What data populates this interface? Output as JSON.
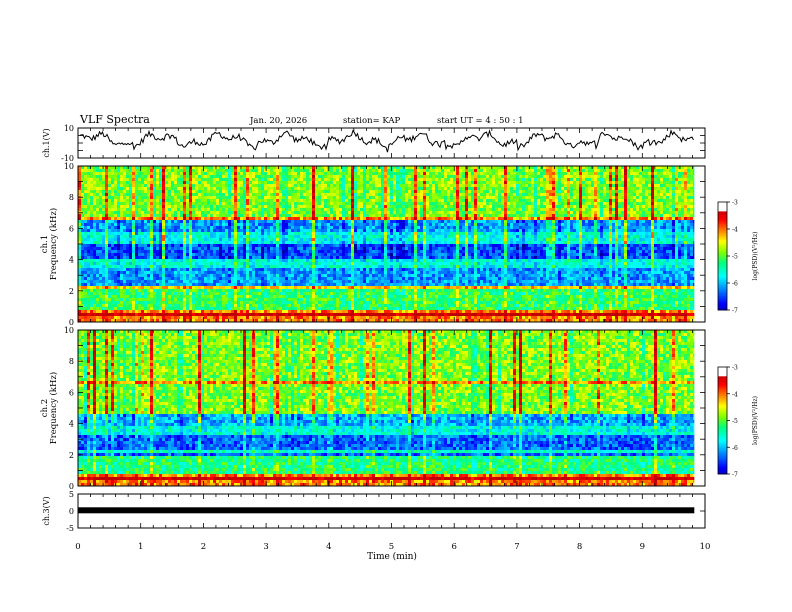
{
  "header": {
    "title": "VLF Spectra",
    "date": "Jan. 20, 2026",
    "station": "station= KAP",
    "start": "start  UT =  4 : 50 : 1"
  },
  "chart_data": [
    {
      "type": "line",
      "name": "ch1-waveform",
      "ylabel": "ch.1(V)",
      "ylim": [
        -10,
        10
      ],
      "yticks": [
        "10",
        "-10"
      ],
      "xlim": [
        0,
        10
      ],
      "x_end": 9.83,
      "description_of_signal": "noisy oscillation around +2 V"
    },
    {
      "type": "heatmap",
      "name": "ch1-spectrogram",
      "ylabel": "ch.1",
      "ylabel2": "Frequency  (kHz)",
      "ylim": [
        0,
        10
      ],
      "yticks": [
        "0",
        "2",
        "4",
        "6",
        "8",
        "10"
      ],
      "xlim": [
        0,
        9.83
      ],
      "bands_khz": [
        {
          "from": 0.0,
          "to": 0.8,
          "level": -3.8
        },
        {
          "from": 0.8,
          "to": 2.4,
          "level": -4.9
        },
        {
          "from": 2.4,
          "to": 3.5,
          "level": -5.9
        },
        {
          "from": 3.5,
          "to": 4.1,
          "level": -5.4
        },
        {
          "from": 4.1,
          "to": 5.0,
          "level": -6.2
        },
        {
          "from": 5.0,
          "to": 5.8,
          "level": -5.4
        },
        {
          "from": 5.8,
          "to": 6.6,
          "level": -5.9
        },
        {
          "from": 6.6,
          "to": 10.0,
          "level": -4.6
        }
      ]
    },
    {
      "type": "heatmap",
      "name": "ch2-spectrogram",
      "ylabel": "ch.2",
      "ylabel2": "Frequency  (kHz)",
      "ylim": [
        0,
        10
      ],
      "yticks": [
        "0",
        "2",
        "4",
        "6",
        "8",
        "10"
      ],
      "xlim": [
        0,
        9.83
      ],
      "bands_khz": [
        {
          "from": 0.0,
          "to": 0.8,
          "level": -3.8
        },
        {
          "from": 0.8,
          "to": 2.0,
          "level": -5.0
        },
        {
          "from": 2.0,
          "to": 3.2,
          "level": -6.1
        },
        {
          "from": 3.2,
          "to": 3.9,
          "level": -5.4
        },
        {
          "from": 3.9,
          "to": 4.7,
          "level": -5.8
        },
        {
          "from": 4.7,
          "to": 10.0,
          "level": -4.6
        }
      ]
    },
    {
      "type": "line",
      "name": "ch3-trace",
      "ylabel": "ch.3(V)",
      "ylim": [
        -5,
        5
      ],
      "yticks": [
        "5",
        "0",
        "-5"
      ],
      "xlim": [
        0,
        10
      ],
      "x_end": 9.83,
      "level": 0.2,
      "xlabel": "Time  (min)",
      "xticks": [
        "0",
        "1",
        "2",
        "3",
        "4",
        "5",
        "6",
        "7",
        "8",
        "9",
        "10"
      ]
    }
  ],
  "colorbar": {
    "label": "log(PSD)(V²/Hz)",
    "range": [
      -7,
      -3
    ],
    "ticks": [
      "-3",
      "-4",
      "-5",
      "-6",
      "-7"
    ],
    "colors": [
      "#00008f",
      "#0000ff",
      "#0080ff",
      "#00ffff",
      "#00ff80",
      "#80ff00",
      "#ffff00",
      "#ff8000",
      "#ff0000",
      "#c00000",
      "#ffffff"
    ]
  }
}
